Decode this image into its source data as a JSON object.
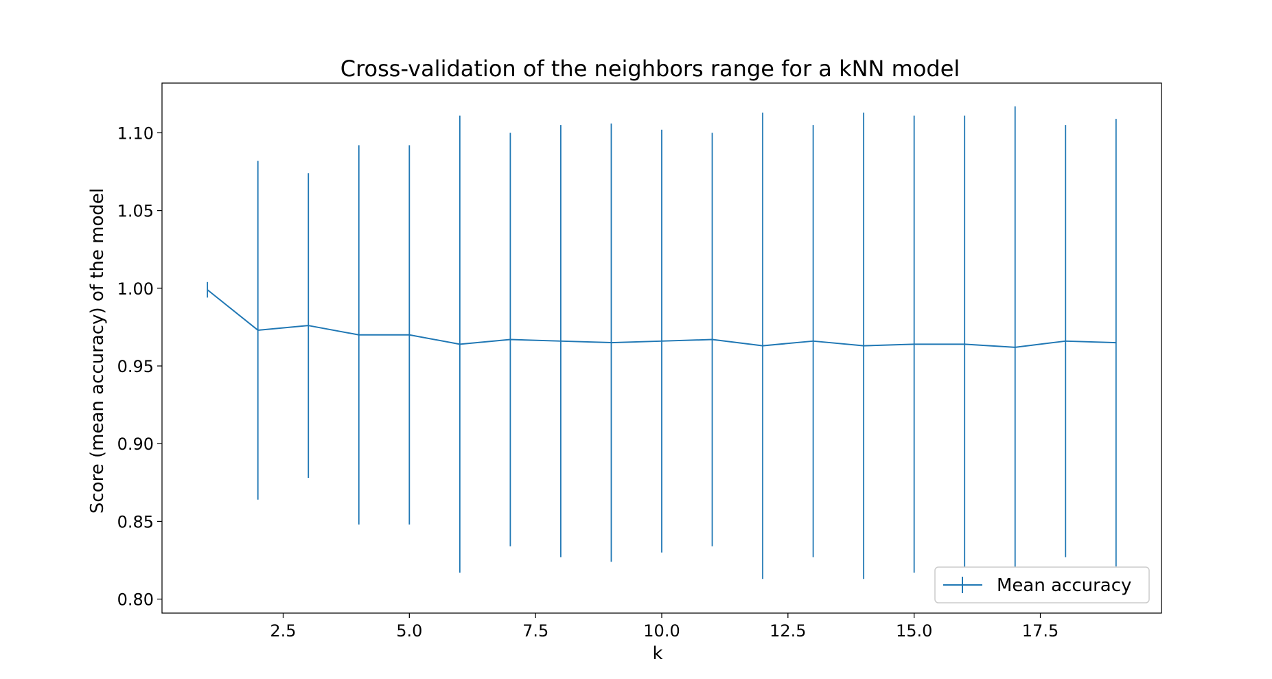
{
  "chart_data": {
    "type": "line",
    "title": "Cross-validation of the neighbors range for a kNN model",
    "xlabel": "k",
    "ylabel": "Score (mean accuracy) of the model",
    "xlim": [
      0.1,
      19.9
    ],
    "ylim": [
      0.791,
      1.132
    ],
    "xticks": [
      2.5,
      5.0,
      7.5,
      10.0,
      12.5,
      15.0,
      17.5
    ],
    "xtick_labels": [
      "2.5",
      "5.0",
      "7.5",
      "10.0",
      "12.5",
      "15.0",
      "17.5"
    ],
    "yticks": [
      0.8,
      0.85,
      0.9,
      0.95,
      1.0,
      1.05,
      1.1
    ],
    "ytick_labels": [
      "0.80",
      "0.85",
      "0.90",
      "0.95",
      "1.00",
      "1.05",
      "1.10"
    ],
    "grid": false,
    "legend_position": "lower-right",
    "color": "#1f77b4",
    "series": [
      {
        "name": "Mean accuracy",
        "x": [
          1,
          2,
          3,
          4,
          5,
          6,
          7,
          8,
          9,
          10,
          11,
          12,
          13,
          14,
          15,
          16,
          17,
          18,
          19
        ],
        "y": [
          0.999,
          0.973,
          0.976,
          0.97,
          0.97,
          0.964,
          0.967,
          0.966,
          0.965,
          0.966,
          0.967,
          0.963,
          0.966,
          0.963,
          0.964,
          0.964,
          0.962,
          0.966,
          0.965
        ],
        "yerr": [
          0.005,
          0.109,
          0.098,
          0.122,
          0.122,
          0.147,
          0.133,
          0.139,
          0.141,
          0.136,
          0.133,
          0.15,
          0.139,
          0.15,
          0.147,
          0.147,
          0.155,
          0.139,
          0.144
        ]
      }
    ]
  }
}
